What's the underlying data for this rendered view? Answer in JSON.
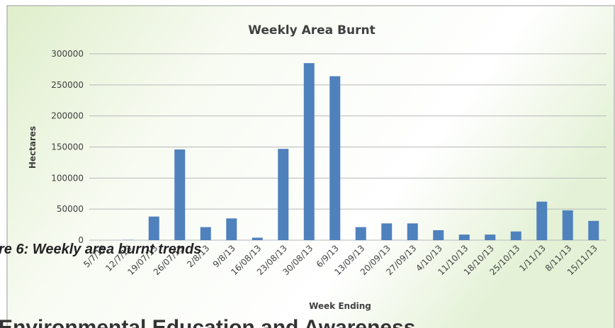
{
  "chart_data": {
    "type": "bar",
    "title": "Weekly Area Burnt",
    "x_label": "Week Ending",
    "y_label": "Hectares",
    "categories": [
      "5/7/13",
      "12/7/13",
      "19/07/13",
      "26/07/13",
      "2/8/13",
      "9/8/13",
      "16/08/13",
      "23/08/13",
      "30/08/13",
      "6/9/13",
      "13/09/13",
      "20/09/13",
      "27/09/13",
      "4/10/13",
      "11/10/13",
      "18/10/13",
      "25/10/13",
      "1/11/13",
      "8/11/13",
      "15/11/13"
    ],
    "values": [
      0,
      500,
      38000,
      146000,
      21000,
      35000,
      4000,
      147000,
      285000,
      264000,
      21000,
      27000,
      27000,
      16000,
      9000,
      9000,
      14000,
      62000,
      48000,
      31000
    ],
    "color": "#4f81bd",
    "ylim": [
      0,
      300000
    ],
    "yticks": [
      0,
      50000,
      100000,
      150000,
      200000,
      250000,
      300000
    ],
    "grid": true
  },
  "caption": "re 6: Weekly area burnt trends",
  "heading": "Environmental Education and Awareness"
}
